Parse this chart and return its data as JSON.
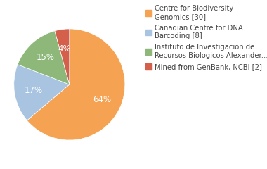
{
  "labels": [
    "Centre for Biodiversity\nGenomics [30]",
    "Canadian Centre for DNA\nBarcoding [8]",
    "Instituto de Investigacion de\nRecursos Biologicos Alexander... [7]",
    "Mined from GenBank, NCBI [2]"
  ],
  "values": [
    30,
    8,
    7,
    2
  ],
  "colors": [
    "#F5A253",
    "#A8C4E0",
    "#8DB87A",
    "#D45F4A"
  ],
  "background_color": "#ffffff",
  "text_color": "#444444",
  "label_fontsize": 7.2,
  "autopct_fontsize": 8.5
}
